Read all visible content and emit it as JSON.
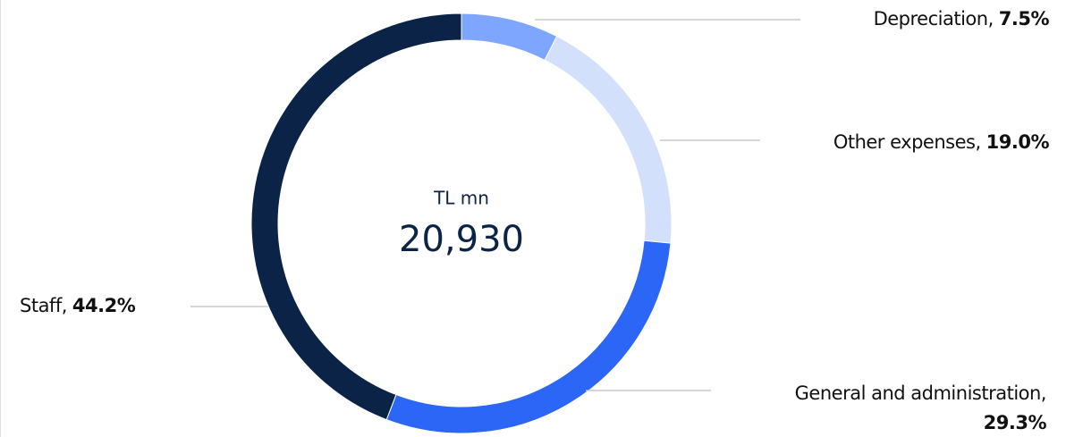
{
  "chart_data": {
    "type": "donut",
    "categories": [
      "Depreciation,",
      "Other expenses,",
      "General and administration,",
      "Staff,"
    ],
    "values": [
      7.5,
      19.0,
      29.3,
      44.2
    ],
    "value_labels": [
      "7.5%",
      "19.0%",
      "29.3%",
      "44.2%"
    ],
    "colors": [
      "#7fa6ff",
      "#d3e0fc",
      "#2b66f6",
      "#0a2346"
    ],
    "center_title": "TL mn",
    "center_value": "20,930"
  }
}
